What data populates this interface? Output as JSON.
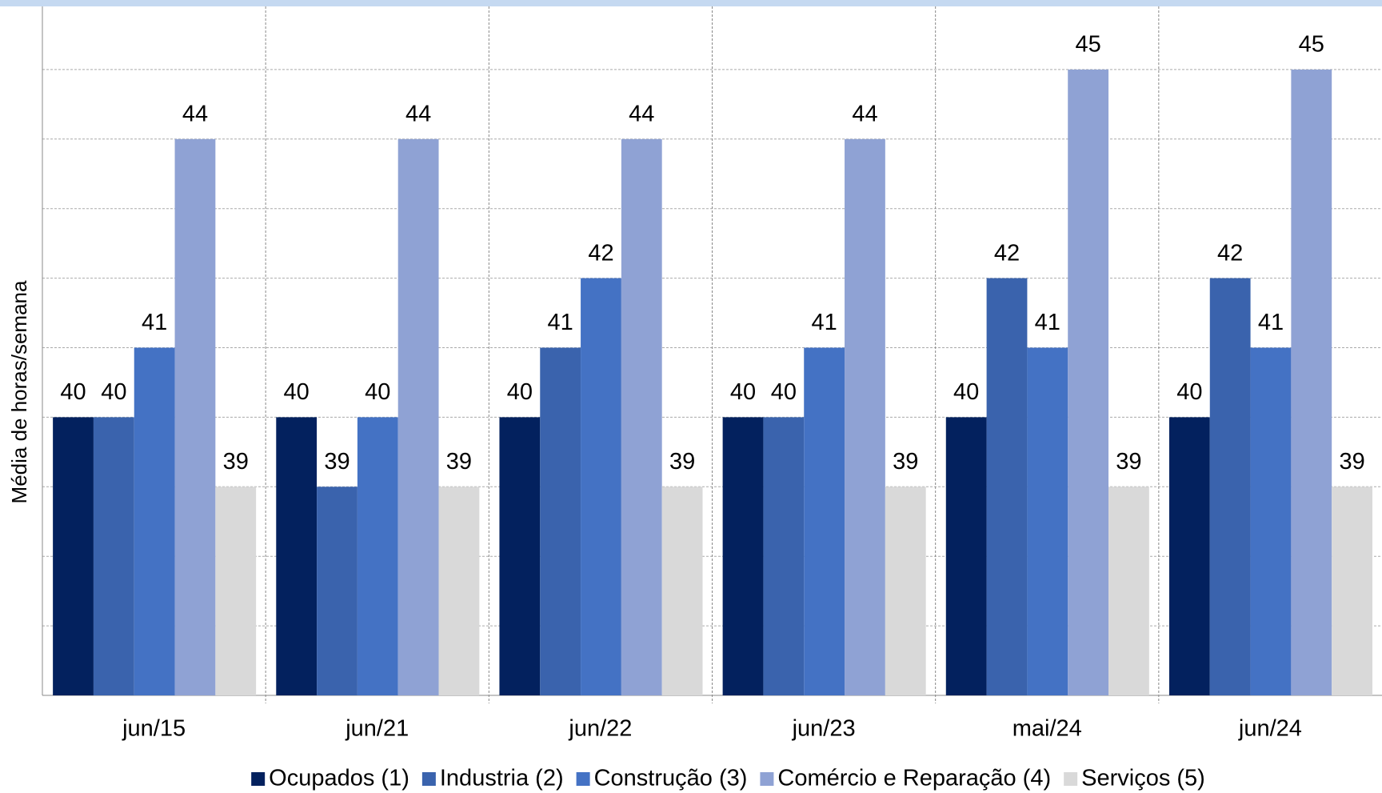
{
  "chart_data": {
    "type": "bar",
    "y_label": "Média de horas/semana",
    "categories": [
      "jun/15",
      "jun/21",
      "jun/22",
      "jun/23",
      "mai/24",
      "jun/24"
    ],
    "series": [
      {
        "name": "Ocupados (1)",
        "color": "#03215e",
        "values": [
          40,
          40,
          40,
          40,
          40,
          40
        ]
      },
      {
        "name": "Industria (2)",
        "color": "#3a63ad",
        "values": [
          40,
          39,
          41,
          40,
          42,
          42
        ]
      },
      {
        "name": "Construção (3)",
        "color": "#4472c4",
        "values": [
          41,
          40,
          42,
          41,
          41,
          41
        ]
      },
      {
        "name": "Comércio e Reparação (4)",
        "color": "#8fa2d4",
        "values": [
          44,
          44,
          44,
          44,
          45,
          45
        ]
      },
      {
        "name": "Serviços (5)",
        "color": "#d9d9d9",
        "values": [
          39,
          39,
          39,
          39,
          39,
          39
        ]
      }
    ],
    "ylim": [
      36,
      46
    ],
    "yticks": [
      37,
      38,
      39,
      40,
      41,
      42,
      43,
      44,
      45
    ],
    "grid": true
  }
}
